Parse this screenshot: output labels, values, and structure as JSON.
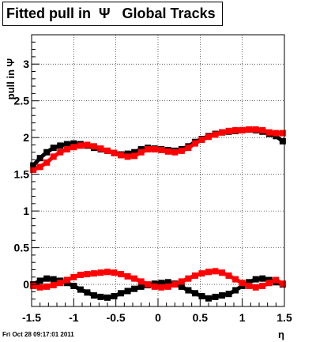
{
  "title": "Fitted pull in  Ψ   Global Tracks",
  "timestamp": "Fri Oct 28 09:17:01 2011",
  "chart_data": {
    "type": "scatter",
    "title": "Fitted pull in  Ψ   Global Tracks",
    "xlabel": "η",
    "ylabel": "pull in Ψ",
    "xlim": [
      -1.5,
      1.5
    ],
    "ylim": [
      -0.3,
      3.4
    ],
    "grid": true,
    "x_ticks": [
      "-1.5",
      "-1",
      "-0.5",
      "0",
      "0.5",
      "1",
      "1.5"
    ],
    "y_ticks": [
      "0",
      "0.5",
      "1",
      "1.5",
      "2",
      "2.5",
      "3"
    ],
    "series": [
      {
        "color": "#000000",
        "x": [
          -1.48,
          -1.4,
          -1.32,
          -1.24,
          -1.16,
          -1.08,
          -1.0,
          -0.92,
          -0.84,
          -0.76,
          -0.68,
          -0.6,
          -0.52,
          -0.44,
          -0.36,
          -0.28,
          -0.2,
          -0.12,
          -0.04,
          0.04,
          0.12,
          0.2,
          0.28,
          0.36,
          0.44,
          0.52,
          0.6,
          0.68,
          0.76,
          0.84,
          0.92,
          1.0,
          1.08,
          1.16,
          1.24,
          1.32,
          1.4,
          1.48
        ],
        "values": [
          1.62,
          1.72,
          1.8,
          1.86,
          1.89,
          1.91,
          1.92,
          1.91,
          1.89,
          1.86,
          1.84,
          1.82,
          1.79,
          1.77,
          1.78,
          1.8,
          1.84,
          1.86,
          1.85,
          1.84,
          1.83,
          1.82,
          1.84,
          1.88,
          1.94,
          1.98,
          2.02,
          2.05,
          2.07,
          2.08,
          2.09,
          2.1,
          2.11,
          2.1,
          2.08,
          2.05,
          2.02,
          1.95
        ]
      },
      {
        "color": "#ff0000",
        "x": [
          -1.48,
          -1.4,
          -1.32,
          -1.24,
          -1.16,
          -1.08,
          -1.0,
          -0.92,
          -0.84,
          -0.76,
          -0.68,
          -0.6,
          -0.52,
          -0.44,
          -0.36,
          -0.28,
          -0.2,
          -0.12,
          -0.04,
          0.04,
          0.12,
          0.2,
          0.28,
          0.36,
          0.44,
          0.52,
          0.6,
          0.68,
          0.76,
          0.84,
          0.92,
          1.0,
          1.08,
          1.16,
          1.24,
          1.32,
          1.4,
          1.48
        ],
        "values": [
          1.56,
          1.6,
          1.66,
          1.74,
          1.8,
          1.84,
          1.87,
          1.89,
          1.9,
          1.88,
          1.85,
          1.82,
          1.79,
          1.76,
          1.74,
          1.75,
          1.8,
          1.84,
          1.84,
          1.83,
          1.81,
          1.8,
          1.82,
          1.86,
          1.92,
          1.97,
          2.01,
          2.04,
          2.07,
          2.09,
          2.1,
          2.1,
          2.11,
          2.11,
          2.1,
          2.07,
          2.06,
          2.06
        ]
      },
      {
        "color": "#000000",
        "x": [
          -1.48,
          -1.4,
          -1.32,
          -1.24,
          -1.16,
          -1.08,
          -1.0,
          -0.92,
          -0.84,
          -0.76,
          -0.68,
          -0.6,
          -0.52,
          -0.44,
          -0.36,
          -0.28,
          -0.2,
          -0.12,
          -0.04,
          0.04,
          0.12,
          0.2,
          0.28,
          0.36,
          0.44,
          0.52,
          0.6,
          0.68,
          0.76,
          0.84,
          0.92,
          1.0,
          1.08,
          1.16,
          1.24,
          1.32,
          1.4,
          1.48
        ],
        "values": [
          0.0,
          0.05,
          0.08,
          0.07,
          0.05,
          0.02,
          -0.02,
          -0.07,
          -0.11,
          -0.15,
          -0.17,
          -0.18,
          -0.16,
          -0.12,
          -0.09,
          -0.06,
          -0.03,
          -0.01,
          0.01,
          0.02,
          0.03,
          0.01,
          -0.03,
          -0.08,
          -0.12,
          -0.16,
          -0.19,
          -0.17,
          -0.15,
          -0.13,
          -0.08,
          -0.02,
          0.03,
          0.07,
          0.08,
          0.06,
          0.03,
          0.0
        ]
      },
      {
        "color": "#ff0000",
        "x": [
          -1.48,
          -1.4,
          -1.32,
          -1.24,
          -1.16,
          -1.08,
          -1.0,
          -0.92,
          -0.84,
          -0.76,
          -0.68,
          -0.6,
          -0.52,
          -0.44,
          -0.36,
          -0.28,
          -0.2,
          -0.12,
          -0.04,
          0.04,
          0.12,
          0.2,
          0.28,
          0.36,
          0.44,
          0.52,
          0.6,
          0.68,
          0.76,
          0.84,
          0.92,
          1.0,
          1.08,
          1.16,
          1.24,
          1.32,
          1.4,
          1.48
        ],
        "values": [
          -0.02,
          -0.04,
          -0.03,
          -0.01,
          0.02,
          0.06,
          0.1,
          0.13,
          0.14,
          0.15,
          0.16,
          0.17,
          0.16,
          0.14,
          0.11,
          0.08,
          0.04,
          0.0,
          -0.03,
          -0.04,
          -0.03,
          0.0,
          0.04,
          0.08,
          0.12,
          0.15,
          0.17,
          0.18,
          0.16,
          0.12,
          0.07,
          0.02,
          -0.02,
          -0.04,
          -0.02,
          0.02,
          0.06,
          0.01
        ]
      }
    ]
  }
}
